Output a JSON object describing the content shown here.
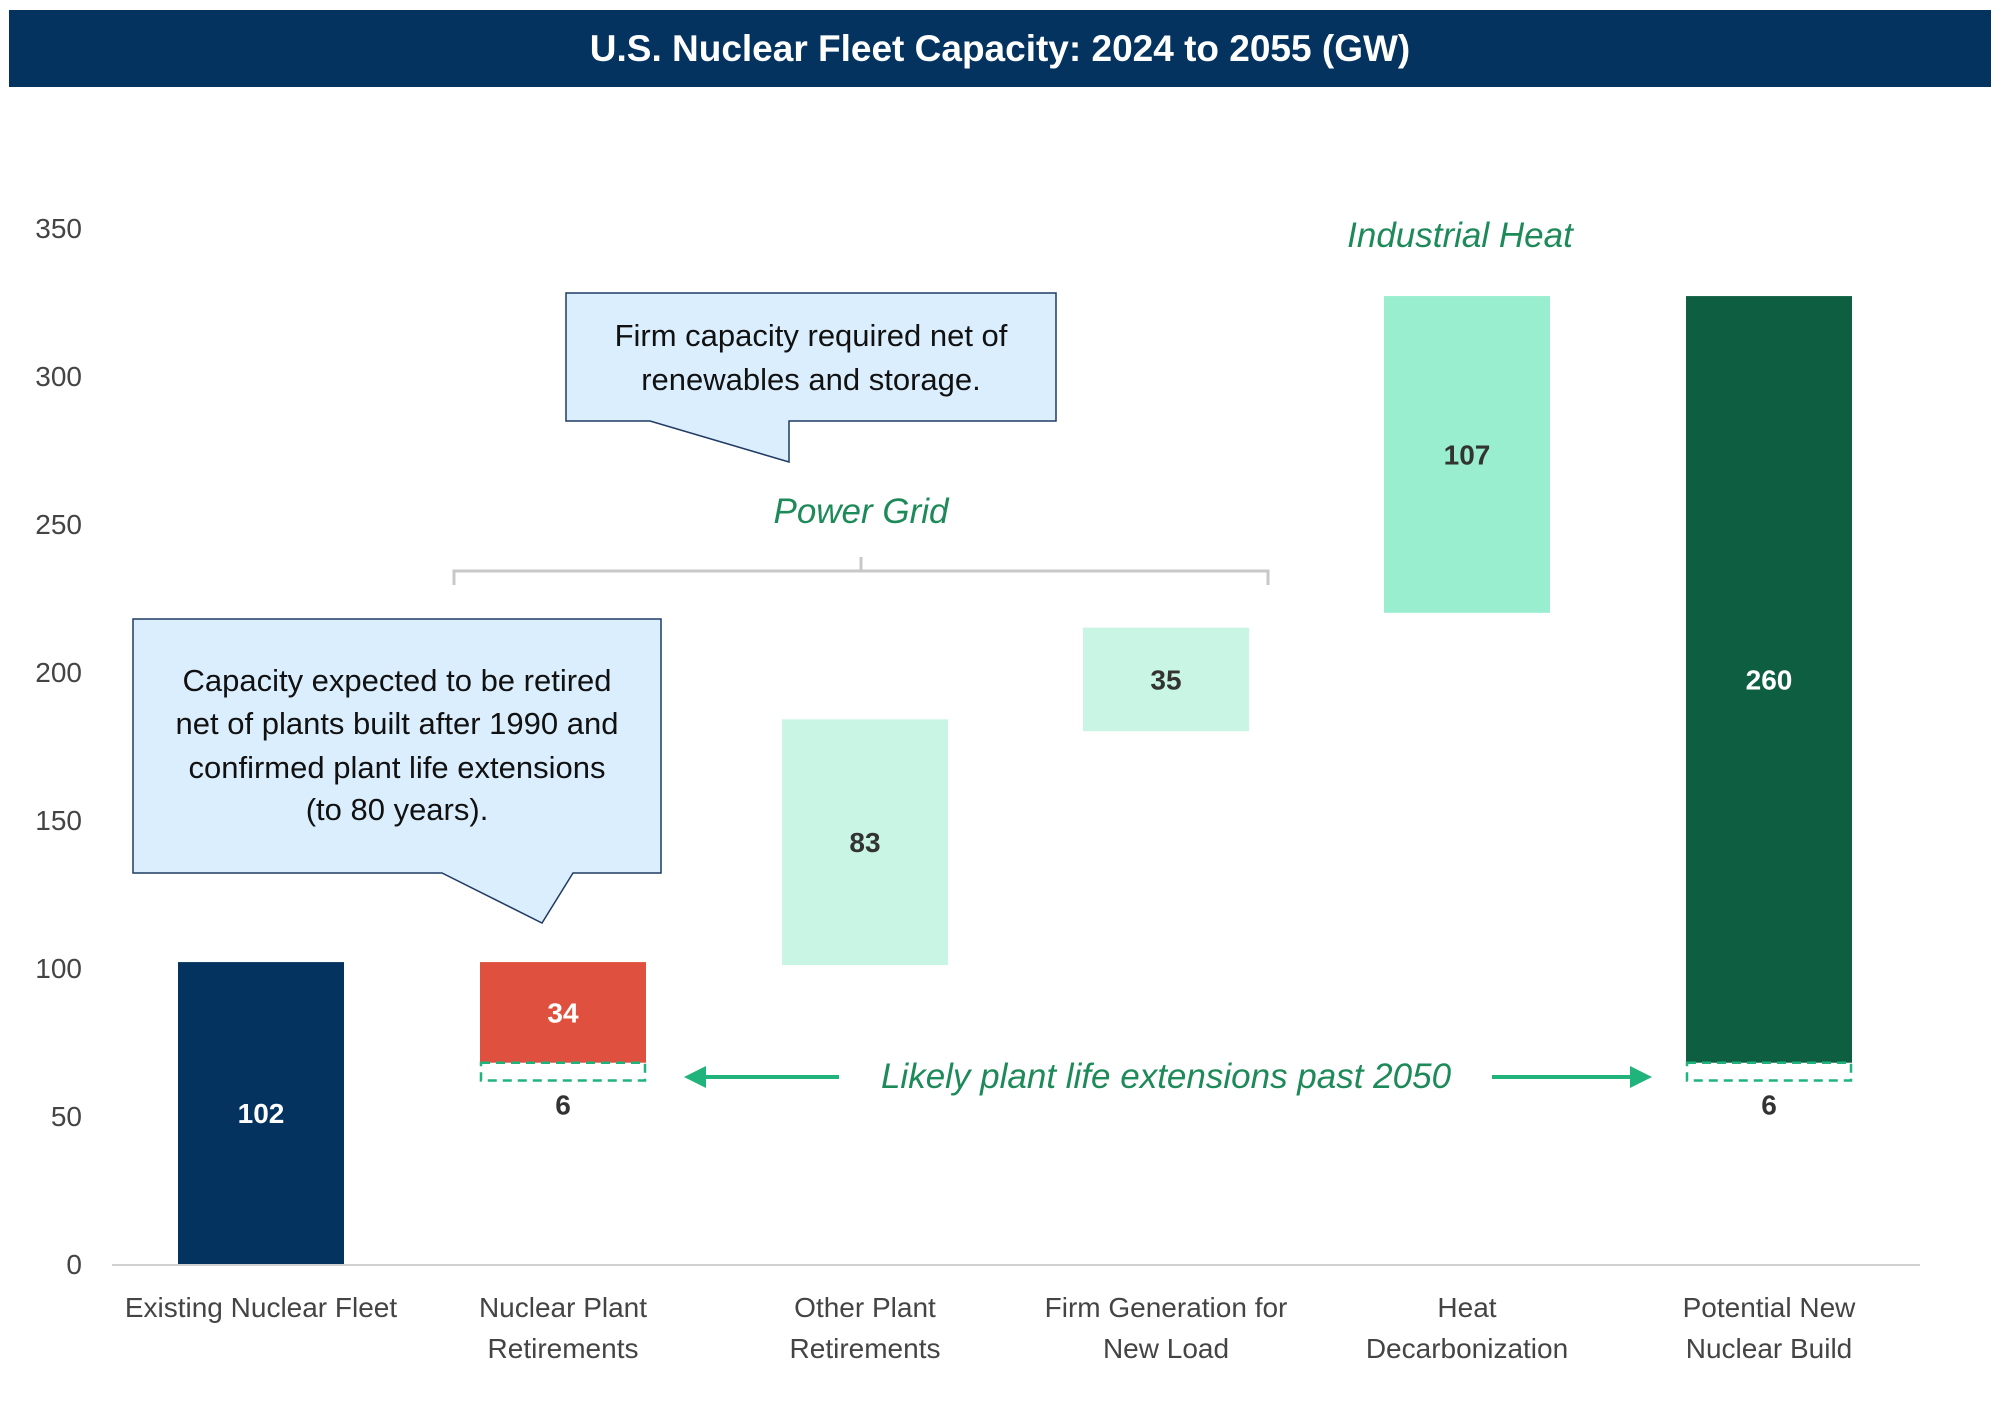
{
  "chart_data": {
    "type": "bar",
    "subtype": "floating-waterfall",
    "title": "U.S. Nuclear Fleet Capacity: 2024 to 2055 (GW)",
    "ylim": [
      0,
      350
    ],
    "yticks": [
      0,
      50,
      100,
      150,
      200,
      250,
      300,
      350
    ],
    "grid": false,
    "categories": [
      [
        "Existing Nuclear Fleet",
        ""
      ],
      [
        "Nuclear Plant",
        "Retirements"
      ],
      [
        "Other Plant",
        "Retirements"
      ],
      [
        "Firm Generation for",
        "New Load"
      ],
      [
        "Heat",
        "Decarbonization"
      ],
      [
        "Potential New",
        "Nuclear Build"
      ]
    ],
    "bars": [
      {
        "start": 0,
        "end": 102,
        "label": "102",
        "color": "#04335f",
        "label_color": "#ffffff"
      },
      {
        "start": 68,
        "end": 102,
        "label": "34",
        "color": "#e0503e",
        "label_color": "#ffffff",
        "dashed": {
          "start": 62,
          "end": 68,
          "label": "6"
        }
      },
      {
        "start": 101,
        "end": 184,
        "label": "83",
        "color": "#c9f5e5",
        "label_color": "#333333"
      },
      {
        "start": 180,
        "end": 215,
        "label": "35",
        "color": "#c9f5e5",
        "label_color": "#333333"
      },
      {
        "start": 220,
        "end": 327,
        "label": "107",
        "color": "#98eecf",
        "label_color": "#333333"
      },
      {
        "start": 68,
        "end": 327,
        "label": "260",
        "color": "#0e5e42",
        "label_color": "#ffffff",
        "dashed": {
          "start": 62,
          "end": 68,
          "label": "6"
        }
      }
    ],
    "annotations": {
      "callout_firm": [
        "Firm capacity required net of",
        "renewables and storage."
      ],
      "callout_retired": [
        "Capacity expected to be retired",
        "net of plants built after 1990 and",
        "confirmed plant life extensions",
        "(to 80 years)."
      ],
      "power_grid": "Power Grid",
      "industrial_heat": "Industrial Heat",
      "extensions": "Likely plant life extensions past 2050"
    },
    "colors": {
      "title_bg": "#04335f",
      "accent_green_text": "#1e8a5a",
      "arrow_green": "#20b37c",
      "callout_fill": "#dbeefd",
      "callout_border": "#1f3b63"
    }
  }
}
